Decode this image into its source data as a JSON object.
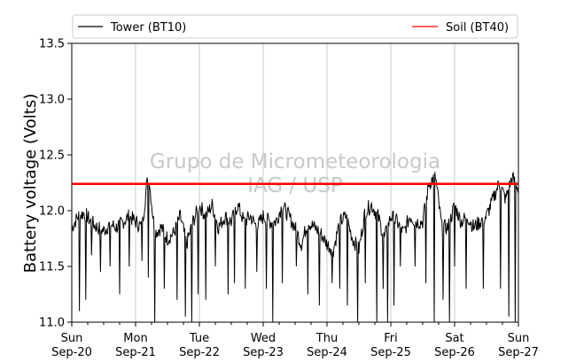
{
  "chart_data": {
    "type": "line",
    "title": "",
    "xlabel": "",
    "ylabel": "Battery voltage (Volts)",
    "ylim": [
      11.0,
      13.5
    ],
    "xlim_days": [
      0,
      7
    ],
    "yticks": [
      11.0,
      11.5,
      12.0,
      12.5,
      13.0,
      13.5
    ],
    "xticks": [
      {
        "day": "Sun",
        "date": "Sep-20"
      },
      {
        "day": "Mon",
        "date": "Sep-21"
      },
      {
        "day": "Tue",
        "date": "Sep-22"
      },
      {
        "day": "Wed",
        "date": "Sep-23"
      },
      {
        "day": "Thu",
        "date": "Sep-24"
      },
      {
        "day": "Fri",
        "date": "Sep-25"
      },
      {
        "day": "Sat",
        "date": "Sep-26"
      },
      {
        "day": "Sun",
        "date": "Sep-27"
      }
    ],
    "grid": "vertical",
    "legend": "top",
    "watermark": [
      "Grupo de Micrometeorologia",
      "IAG / USP"
    ],
    "series": [
      {
        "name": "Tower (BT10)",
        "color": "#000000",
        "x": [
          0.0,
          0.1,
          0.2,
          0.3,
          0.4,
          0.5,
          0.6,
          0.7,
          0.8,
          0.9,
          1.0,
          1.1,
          1.2,
          1.3,
          1.4,
          1.5,
          1.6,
          1.7,
          1.8,
          1.9,
          2.0,
          2.1,
          2.2,
          2.3,
          2.4,
          2.5,
          2.6,
          2.7,
          2.8,
          2.9,
          3.0,
          3.1,
          3.2,
          3.3,
          3.4,
          3.5,
          3.6,
          3.7,
          3.8,
          3.9,
          4.0,
          4.1,
          4.2,
          4.3,
          4.4,
          4.5,
          4.6,
          4.7,
          4.8,
          4.9,
          5.0,
          5.1,
          5.2,
          5.3,
          5.4,
          5.5,
          5.6,
          5.7,
          5.8,
          5.9,
          6.0,
          6.1,
          6.2,
          6.3,
          6.4,
          6.5,
          6.6,
          6.7,
          6.8,
          6.9,
          7.0
        ],
        "y": [
          11.85,
          11.95,
          11.98,
          11.9,
          11.85,
          11.82,
          11.88,
          11.85,
          11.9,
          11.95,
          11.9,
          11.85,
          12.35,
          11.8,
          11.85,
          11.75,
          11.8,
          11.95,
          11.7,
          11.9,
          12.05,
          11.95,
          12.05,
          11.85,
          11.95,
          11.9,
          12.05,
          11.9,
          11.95,
          11.85,
          11.95,
          11.9,
          11.9,
          12.05,
          11.95,
          11.85,
          11.7,
          11.9,
          11.85,
          11.8,
          11.7,
          11.65,
          11.9,
          11.95,
          11.75,
          11.65,
          12.0,
          12.05,
          11.95,
          11.75,
          11.95,
          11.9,
          11.8,
          11.95,
          11.9,
          11.9,
          12.25,
          12.3,
          11.85,
          11.85,
          12.05,
          11.9,
          11.95,
          11.85,
          11.9,
          11.95,
          12.1,
          12.25,
          12.1,
          12.3,
          12.2
        ],
        "dips": [
          [
            0.12,
            11.1
          ],
          [
            0.22,
            11.2
          ],
          [
            0.31,
            11.6
          ],
          [
            0.45,
            11.45
          ],
          [
            0.6,
            11.5
          ],
          [
            0.75,
            11.25
          ],
          [
            0.9,
            11.5
          ],
          [
            1.1,
            11.55
          ],
          [
            1.2,
            11.4
          ],
          [
            1.3,
            11.0
          ],
          [
            1.45,
            11.3
          ],
          [
            1.65,
            11.2
          ],
          [
            1.78,
            11.05
          ],
          [
            1.88,
            11.0
          ],
          [
            1.98,
            11.25
          ],
          [
            2.1,
            11.2
          ],
          [
            2.25,
            11.5
          ],
          [
            2.45,
            11.25
          ],
          [
            2.55,
            11.35
          ],
          [
            2.72,
            11.3
          ],
          [
            2.9,
            11.45
          ],
          [
            3.05,
            11.3
          ],
          [
            3.15,
            11.0
          ],
          [
            3.3,
            11.35
          ],
          [
            3.52,
            11.5
          ],
          [
            3.7,
            11.25
          ],
          [
            3.88,
            11.15
          ],
          [
            4.08,
            11.35
          ],
          [
            4.2,
            11.3
          ],
          [
            4.32,
            11.15
          ],
          [
            4.48,
            11.0
          ],
          [
            4.6,
            11.35
          ],
          [
            4.78,
            11.0
          ],
          [
            4.88,
            11.3
          ],
          [
            4.95,
            11.0
          ],
          [
            5.05,
            11.15
          ],
          [
            5.15,
            11.5
          ],
          [
            5.38,
            11.5
          ],
          [
            5.55,
            11.35
          ],
          [
            5.68,
            11.0
          ],
          [
            5.82,
            11.2
          ],
          [
            5.92,
            11.0
          ],
          [
            6.0,
            11.5
          ],
          [
            6.18,
            11.3
          ],
          [
            6.45,
            11.3
          ],
          [
            6.72,
            11.3
          ],
          [
            6.85,
            11.05
          ],
          [
            6.95,
            11.0
          ]
        ]
      },
      {
        "name": "Soil (BT40)",
        "color": "#ff0000",
        "x": [
          0,
          7
        ],
        "y": [
          12.24,
          12.24
        ]
      }
    ]
  }
}
